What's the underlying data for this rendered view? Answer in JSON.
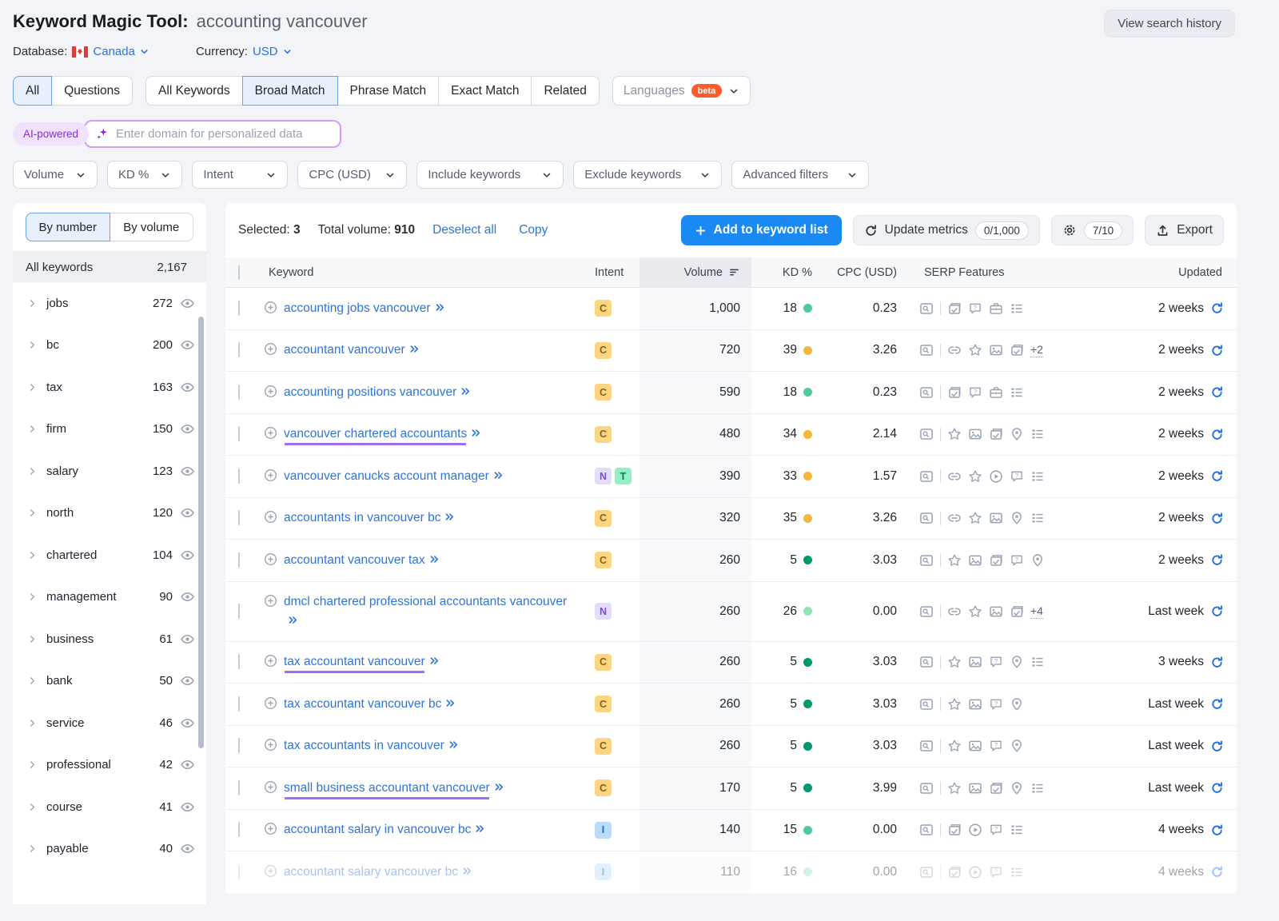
{
  "header": {
    "title": "Keyword Magic Tool:",
    "query": "accounting vancouver",
    "database_label": "Database:",
    "database_value": "Canada",
    "currency_label": "Currency:",
    "currency_value": "USD",
    "view_history": "View search history"
  },
  "tabs": {
    "group1": [
      {
        "label": "All",
        "active": true
      },
      {
        "label": "Questions",
        "active": false
      }
    ],
    "group2": [
      {
        "label": "All Keywords",
        "active": false
      },
      {
        "label": "Broad Match",
        "active": true
      },
      {
        "label": "Phrase Match",
        "active": false
      },
      {
        "label": "Exact Match",
        "active": false
      },
      {
        "label": "Related",
        "active": false
      }
    ],
    "languages": {
      "label": "Languages",
      "badge": "beta"
    }
  },
  "ai": {
    "badge": "AI-powered",
    "placeholder": "Enter domain for personalized data"
  },
  "filters": [
    "Volume",
    "KD %",
    "Intent",
    "CPC (USD)",
    "Include keywords",
    "Exclude keywords",
    "Advanced filters"
  ],
  "sidebar": {
    "tabs": [
      {
        "label": "By number",
        "active": true
      },
      {
        "label": "By volume",
        "active": false
      }
    ],
    "all_label": "All keywords",
    "all_count": "2,167",
    "items": [
      {
        "label": "jobs",
        "count": "272"
      },
      {
        "label": "bc",
        "count": "200"
      },
      {
        "label": "tax",
        "count": "163"
      },
      {
        "label": "firm",
        "count": "150"
      },
      {
        "label": "salary",
        "count": "123"
      },
      {
        "label": "north",
        "count": "120"
      },
      {
        "label": "chartered",
        "count": "104"
      },
      {
        "label": "management",
        "count": "90"
      },
      {
        "label": "business",
        "count": "61"
      },
      {
        "label": "bank",
        "count": "50"
      },
      {
        "label": "service",
        "count": "46"
      },
      {
        "label": "professional",
        "count": "42"
      },
      {
        "label": "course",
        "count": "41"
      },
      {
        "label": "payable",
        "count": "40"
      }
    ]
  },
  "toolbar": {
    "selected_label": "Selected:",
    "selected_value": "3",
    "volume_label": "Total volume:",
    "volume_value": "910",
    "deselect": "Deselect all",
    "copy": "Copy",
    "add_button": "Add to keyword list",
    "update_metrics": "Update metrics",
    "update_badge": "0/1,000",
    "settings_badge": "7/10",
    "export": "Export"
  },
  "table": {
    "headers": {
      "keyword": "Keyword",
      "intent": "Intent",
      "volume": "Volume",
      "kd": "KD %",
      "cpc": "CPC (USD)",
      "serp": "SERP Features",
      "updated": "Updated"
    },
    "rows": [
      {
        "keyword": "accounting jobs vancouver",
        "intents": [
          "C"
        ],
        "volume": "1,000",
        "kd": "18",
        "kd_color": "green",
        "cpc": "0.23",
        "serp": [
          "image-stack",
          "question-bubble",
          "briefcase",
          "list"
        ],
        "extra": "",
        "updated": "2 weeks",
        "underline": false,
        "faded": false
      },
      {
        "keyword": "accountant vancouver",
        "intents": [
          "C"
        ],
        "volume": "720",
        "kd": "39",
        "kd_color": "orange",
        "cpc": "3.26",
        "serp": [
          "link",
          "star",
          "image",
          "image-stack"
        ],
        "extra": "+2",
        "updated": "2 weeks",
        "underline": false,
        "faded": false
      },
      {
        "keyword": "accounting positions vancouver",
        "intents": [
          "C"
        ],
        "volume": "590",
        "kd": "18",
        "kd_color": "green",
        "cpc": "0.23",
        "serp": [
          "image-stack",
          "question-bubble",
          "briefcase",
          "list"
        ],
        "extra": "",
        "updated": "2 weeks",
        "underline": false,
        "faded": false
      },
      {
        "keyword": "vancouver chartered accountants",
        "intents": [
          "C"
        ],
        "volume": "480",
        "kd": "34",
        "kd_color": "orange",
        "cpc": "2.14",
        "serp": [
          "star",
          "image",
          "image-stack",
          "pin",
          "list"
        ],
        "extra": "",
        "updated": "2 weeks",
        "underline": true,
        "faded": false
      },
      {
        "keyword": "vancouver canucks account manager",
        "intents": [
          "N",
          "T"
        ],
        "volume": "390",
        "kd": "33",
        "kd_color": "orange",
        "cpc": "1.57",
        "serp": [
          "link",
          "star",
          "play",
          "question-bubble",
          "list"
        ],
        "extra": "",
        "updated": "2 weeks",
        "underline": false,
        "faded": false
      },
      {
        "keyword": "accountants in vancouver bc",
        "intents": [
          "C"
        ],
        "volume": "320",
        "kd": "35",
        "kd_color": "orange",
        "cpc": "3.26",
        "serp": [
          "link",
          "star",
          "image",
          "pin",
          "list"
        ],
        "extra": "",
        "updated": "2 weeks",
        "underline": false,
        "faded": false
      },
      {
        "keyword": "accountant vancouver tax",
        "intents": [
          "C"
        ],
        "volume": "260",
        "kd": "5",
        "kd_color": "teal",
        "cpc": "3.03",
        "serp": [
          "star",
          "image",
          "image-stack",
          "question-bubble",
          "pin"
        ],
        "extra": "",
        "updated": "2 weeks",
        "underline": false,
        "faded": false
      },
      {
        "keyword": "dmcl chartered professional accountants vancouver",
        "intents": [
          "N"
        ],
        "volume": "260",
        "kd": "26",
        "kd_color": "lightgreen",
        "cpc": "0.00",
        "serp": [
          "link",
          "star",
          "image",
          "image-stack"
        ],
        "extra": "+4",
        "updated": "Last week",
        "underline": false,
        "faded": false
      },
      {
        "keyword": "tax accountant vancouver",
        "intents": [
          "C"
        ],
        "volume": "260",
        "kd": "5",
        "kd_color": "teal",
        "cpc": "3.03",
        "serp": [
          "star",
          "image",
          "question-bubble",
          "pin",
          "list"
        ],
        "extra": "",
        "updated": "3 weeks",
        "underline": true,
        "faded": false
      },
      {
        "keyword": "tax accountant vancouver bc",
        "intents": [
          "C"
        ],
        "volume": "260",
        "kd": "5",
        "kd_color": "teal",
        "cpc": "3.03",
        "serp": [
          "star",
          "image",
          "question-bubble",
          "pin"
        ],
        "extra": "",
        "updated": "Last week",
        "underline": false,
        "faded": false
      },
      {
        "keyword": "tax accountants in vancouver",
        "intents": [
          "C"
        ],
        "volume": "260",
        "kd": "5",
        "kd_color": "teal",
        "cpc": "3.03",
        "serp": [
          "star",
          "image",
          "question-bubble",
          "pin"
        ],
        "extra": "",
        "updated": "Last week",
        "underline": false,
        "faded": false
      },
      {
        "keyword": "small business accountant vancouver",
        "intents": [
          "C"
        ],
        "volume": "170",
        "kd": "5",
        "kd_color": "teal",
        "cpc": "3.99",
        "serp": [
          "star",
          "image",
          "image-stack",
          "pin",
          "list"
        ],
        "extra": "",
        "updated": "Last week",
        "underline": true,
        "faded": false
      },
      {
        "keyword": "accountant salary in vancouver bc",
        "intents": [
          "I"
        ],
        "volume": "140",
        "kd": "15",
        "kd_color": "green",
        "cpc": "0.00",
        "serp": [
          "image-stack",
          "play",
          "question-bubble",
          "list"
        ],
        "extra": "",
        "updated": "4 weeks",
        "underline": false,
        "faded": false
      },
      {
        "keyword": "accountant salary vancouver bc",
        "intents": [
          "I"
        ],
        "volume": "110",
        "kd": "16",
        "kd_color": "lightgreen",
        "cpc": "0.00",
        "serp": [
          "image-stack",
          "play",
          "question-bubble",
          "list"
        ],
        "extra": "",
        "updated": "4 weeks",
        "underline": false,
        "faded": true
      }
    ]
  },
  "colors": {
    "accent_blue": "#1a8af2",
    "link_blue": "#2e74d9",
    "selected_underline": "#a06cf1",
    "intent_commercial": "#fbd581",
    "intent_navigational": "#e4dcfa",
    "intent_transactional": "#93efc6",
    "intent_informational": "#badcf8",
    "kd_easy": "#4ecb99",
    "kd_possible": "#f6b63b",
    "kd_very_easy": "#00996e",
    "beta_orange": "#ff5c2b"
  }
}
